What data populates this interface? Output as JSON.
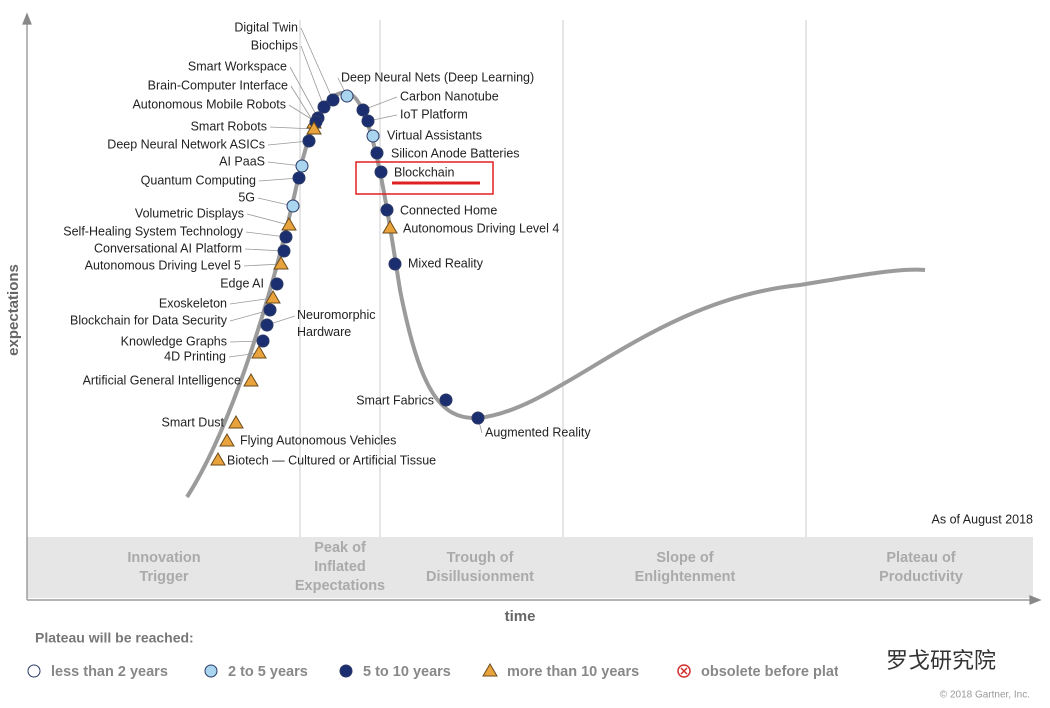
{
  "title": "",
  "diagram": {
    "y_axis_label": "expectations",
    "x_axis_label": "time",
    "as_of": "As of August 2018",
    "phases": [
      [
        "Innovation",
        "Trigger"
      ],
      [
        "Peak of",
        "Inflated",
        "Expectations"
      ],
      [
        "Trough of",
        "Disillusionment"
      ],
      [
        "Slope of",
        "Enlightenment"
      ],
      [
        "Plateau of",
        "Productivity"
      ]
    ],
    "items": [
      {
        "name": "Digital Twin",
        "plateau": "5 to 10 years"
      },
      {
        "name": "Biochips",
        "plateau": "5 to 10 years"
      },
      {
        "name": "Smart Workspace",
        "plateau": "5 to 10 years"
      },
      {
        "name": "Brain-Computer Interface",
        "plateau": "more than 10 years"
      },
      {
        "name": "Autonomous Mobile Robots",
        "plateau": "5 to 10 years"
      },
      {
        "name": "Smart Robots",
        "plateau": "more than 10 years"
      },
      {
        "name": "Deep Neural Network ASICs",
        "plateau": "5 to 10 years"
      },
      {
        "name": "AI PaaS",
        "plateau": "2 to 5 years"
      },
      {
        "name": "Quantum Computing",
        "plateau": "5 to 10 years"
      },
      {
        "name": "5G",
        "plateau": "2 to 5 years"
      },
      {
        "name": "Volumetric Displays",
        "plateau": "more than 10 years"
      },
      {
        "name": "Self-Healing System Technology",
        "plateau": "5 to 10 years"
      },
      {
        "name": "Conversational AI Platform",
        "plateau": "5 to 10 years"
      },
      {
        "name": "Autonomous Driving Level 5",
        "plateau": "more than 10 years"
      },
      {
        "name": "Edge AI",
        "plateau": "5 to 10 years"
      },
      {
        "name": "Exoskeleton",
        "plateau": "more than 10 years"
      },
      {
        "name": "Blockchain for Data Security",
        "plateau": "5 to 10 years"
      },
      {
        "name": "Neuromorphic Hardware",
        "plateau": "5 to 10 years"
      },
      {
        "name": "Knowledge Graphs",
        "plateau": "5 to 10 years"
      },
      {
        "name": "4D Printing",
        "plateau": "more than 10 years"
      },
      {
        "name": "Artificial General Intelligence",
        "plateau": "more than 10 years"
      },
      {
        "name": "Smart Dust",
        "plateau": "more than 10 years"
      },
      {
        "name": "Flying Autonomous Vehicles",
        "plateau": "more than 10 years"
      },
      {
        "name": "Biotech — Cultured or Artificial Tissue",
        "plateau": "more than 10 years"
      },
      {
        "name": "Deep Neural Nets (Deep Learning)",
        "plateau": "2 to 5 years"
      },
      {
        "name": "Carbon Nanotube",
        "plateau": "5 to 10 years"
      },
      {
        "name": "IoT Platform",
        "plateau": "5 to 10 years"
      },
      {
        "name": "Virtual Assistants",
        "plateau": "2 to 5 years"
      },
      {
        "name": "Silicon Anode Batteries",
        "plateau": "5 to 10 years"
      },
      {
        "name": "Blockchain",
        "plateau": "5 to 10 years"
      },
      {
        "name": "Connected Home",
        "plateau": "5 to 10 years"
      },
      {
        "name": "Autonomous Driving Level 4",
        "plateau": "more than 10 years"
      },
      {
        "name": "Mixed Reality",
        "plateau": "5 to 10 years"
      },
      {
        "name": "Smart Fabrics",
        "plateau": "5 to 10 years"
      },
      {
        "name": "Augmented Reality",
        "plateau": "5 to 10 years"
      }
    ]
  },
  "legend": {
    "title": "Plateau will be reached:",
    "items": [
      "less than 2 years",
      "2 to 5 years",
      "5 to 10 years",
      "more than 10 years",
      "obsolete before plateau"
    ]
  },
  "watermark": "罗戈研究院",
  "copyright": "© 2018 Gartner, Inc."
}
